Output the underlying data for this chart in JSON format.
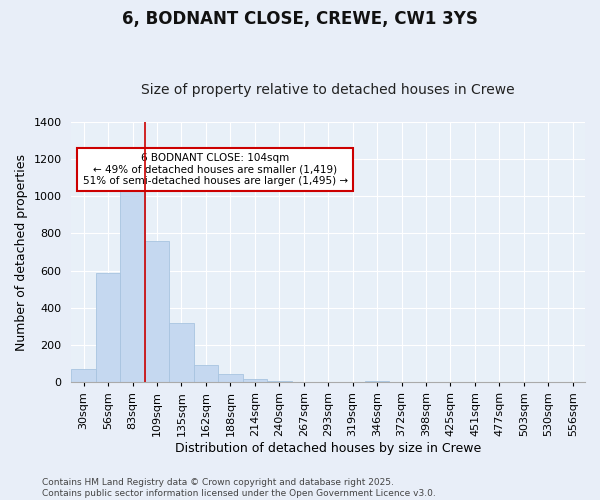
{
  "title": "6, BODNANT CLOSE, CREWE, CW1 3YS",
  "subtitle": "Size of property relative to detached houses in Crewe",
  "xlabel": "Distribution of detached houses by size in Crewe",
  "ylabel": "Number of detached properties",
  "categories": [
    "30sqm",
    "56sqm",
    "83sqm",
    "109sqm",
    "135sqm",
    "162sqm",
    "188sqm",
    "214sqm",
    "240sqm",
    "267sqm",
    "293sqm",
    "319sqm",
    "346sqm",
    "372sqm",
    "398sqm",
    "425sqm",
    "451sqm",
    "477sqm",
    "503sqm",
    "530sqm",
    "556sqm"
  ],
  "values": [
    70,
    590,
    1030,
    760,
    320,
    95,
    45,
    18,
    8,
    4,
    1,
    0,
    6,
    0,
    0,
    0,
    0,
    0,
    0,
    0,
    0
  ],
  "bar_color": "#c5d8f0",
  "bar_edgecolor": "#a8c4e0",
  "vline_color": "#cc0000",
  "vline_x_idx": 2.5,
  "ylim": [
    0,
    1400
  ],
  "yticks": [
    0,
    200,
    400,
    600,
    800,
    1000,
    1200,
    1400
  ],
  "annotation_text": "6 BODNANT CLOSE: 104sqm\n← 49% of detached houses are smaller (1,419)\n51% of semi-detached houses are larger (1,495) →",
  "footnote": "Contains HM Land Registry data © Crown copyright and database right 2025.\nContains public sector information licensed under the Open Government Licence v3.0.",
  "background_color": "#e8eef8",
  "plot_background": "#e8f0f8",
  "grid_color": "#ffffff",
  "title_fontsize": 12,
  "subtitle_fontsize": 10,
  "tick_fontsize": 8,
  "ylabel_fontsize": 9,
  "xlabel_fontsize": 9,
  "footnote_fontsize": 6.5
}
